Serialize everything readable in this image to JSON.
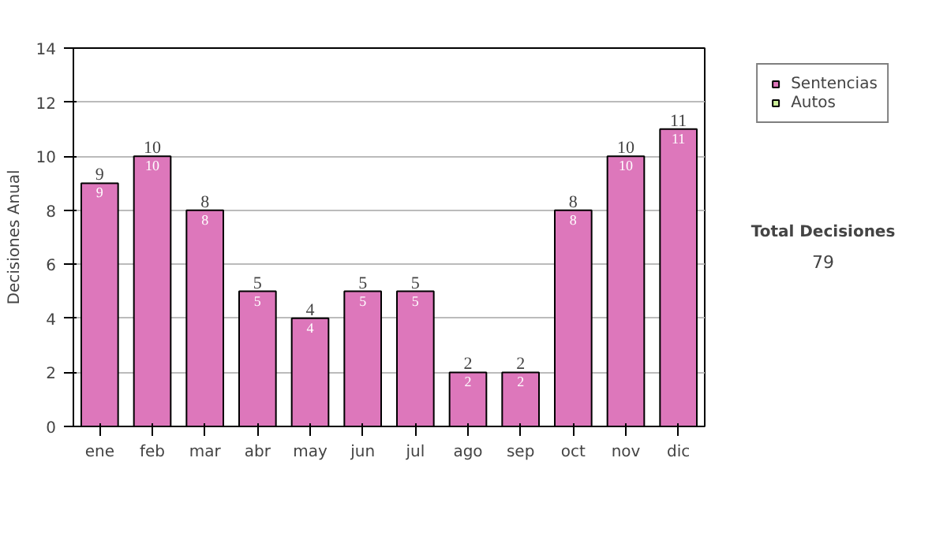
{
  "chart_data": {
    "type": "bar",
    "stacked": true,
    "ylabel": "Decisiones Anual",
    "categories": [
      "ene",
      "feb",
      "mar",
      "abr",
      "may",
      "jun",
      "jul",
      "ago",
      "sep",
      "oct",
      "nov",
      "dic"
    ],
    "series": [
      {
        "name": "Sentencias",
        "color": "#dd77bb",
        "values": [
          9,
          10,
          8,
          5,
          4,
          5,
          5,
          2,
          2,
          8,
          10,
          11
        ]
      },
      {
        "name": "Autos",
        "color": "#ccee99",
        "values": [
          null,
          null,
          null,
          null,
          null,
          null,
          null,
          null,
          null,
          null,
          null,
          null
        ]
      }
    ],
    "totals": [
      "9",
      "10",
      "8",
      "5",
      "4",
      "5",
      "5",
      "2",
      "2",
      "8",
      "10",
      "11"
    ],
    "data_labels": true,
    "ylim": [
      0,
      14
    ],
    "yticks": [
      0,
      2,
      4,
      6,
      8,
      10,
      12,
      14
    ],
    "grid": "y",
    "legend": "right",
    "annotations": [
      "Total Decisiones",
      "79"
    ]
  }
}
